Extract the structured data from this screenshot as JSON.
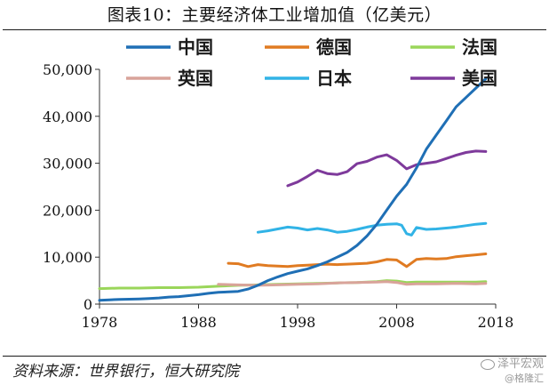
{
  "header": {
    "title": "图表10：主要经济体工业增加值（亿美元）"
  },
  "footer": {
    "source": "资料来源：世界银行，恒大研究院"
  },
  "watermark": {
    "line1": "泽平宏观",
    "line2": "@格隆汇",
    "icon": "wechat-icon"
  },
  "chart_data": {
    "type": "line",
    "title": "图表10：主要经济体工业增加值（亿美元）",
    "xlabel": "",
    "ylabel": "",
    "xlim": [
      1978,
      2018
    ],
    "ylim": [
      0,
      50000
    ],
    "x_ticks": [
      "1978",
      "1988",
      "1998",
      "2008",
      "2018"
    ],
    "y_ticks": [
      "0",
      "10,000",
      "20,000",
      "30,000",
      "40,000",
      "50,000"
    ],
    "grid": false,
    "legend_position": "top",
    "series": [
      {
        "name": "中国",
        "color": "#1f6fb5",
        "x": [
          1978,
          1979,
          1980,
          1981,
          1982,
          1983,
          1984,
          1985,
          1986,
          1987,
          1988,
          1989,
          1990,
          1991,
          1992,
          1993,
          1994,
          1995,
          1996,
          1997,
          1998,
          1999,
          2000,
          2001,
          2002,
          2003,
          2004,
          2005,
          2006,
          2007,
          2008,
          2009,
          2010,
          2011,
          2012,
          2013,
          2014,
          2015,
          2016,
          2017
        ],
        "y": [
          800,
          900,
          1000,
          1050,
          1100,
          1200,
          1300,
          1500,
          1600,
          1800,
          2000,
          2300,
          2500,
          2600,
          2700,
          3200,
          4000,
          5000,
          5800,
          6500,
          7000,
          7500,
          8200,
          9000,
          10000,
          11000,
          12500,
          14500,
          17000,
          20000,
          23000,
          25500,
          29000,
          33000,
          36000,
          39000,
          42000,
          44000,
          46000,
          48000
        ]
      },
      {
        "name": "德国",
        "color": "#e07b22",
        "x": [
          1991,
          1992,
          1993,
          1994,
          1995,
          1996,
          1997,
          1998,
          1999,
          2000,
          2001,
          2002,
          2003,
          2004,
          2005,
          2006,
          2007,
          2008,
          2009,
          2010,
          2011,
          2012,
          2013,
          2014,
          2015,
          2016,
          2017
        ],
        "y": [
          8700,
          8600,
          8000,
          8400,
          8200,
          8100,
          8000,
          8200,
          8300,
          8400,
          8500,
          8400,
          8500,
          8600,
          8700,
          9000,
          9500,
          9400,
          8000,
          9500,
          9700,
          9600,
          9700,
          10100,
          10300,
          10500,
          10700
        ]
      },
      {
        "name": "法国",
        "color": "#9ad65a",
        "x": [
          1978,
          1980,
          1982,
          1984,
          1986,
          1988,
          1990,
          1992,
          1994,
          1996,
          1998,
          2000,
          2002,
          2004,
          2006,
          2007,
          2008,
          2009,
          2010,
          2012,
          2014,
          2016,
          2017
        ],
        "y": [
          3300,
          3400,
          3400,
          3500,
          3500,
          3600,
          3800,
          4000,
          4100,
          4200,
          4300,
          4400,
          4500,
          4600,
          4800,
          5000,
          4900,
          4600,
          4700,
          4700,
          4700,
          4700,
          4800
        ]
      },
      {
        "name": "英国",
        "color": "#d9a39a",
        "x": [
          1990,
          1992,
          1994,
          1996,
          1998,
          2000,
          2002,
          2004,
          2006,
          2007,
          2008,
          2009,
          2010,
          2012,
          2014,
          2016,
          2017
        ],
        "y": [
          4200,
          4100,
          4000,
          4100,
          4200,
          4300,
          4500,
          4600,
          4700,
          4800,
          4600,
          4200,
          4300,
          4300,
          4400,
          4300,
          4400
        ]
      },
      {
        "name": "日本",
        "color": "#31b3e6",
        "x": [
          1994,
          1995,
          1996,
          1997,
          1998,
          1999,
          2000,
          2001,
          2002,
          2003,
          2004,
          2005,
          2006,
          2007,
          2008,
          2008.5,
          2009,
          2009.5,
          2010,
          2011,
          2012,
          2013,
          2014,
          2015,
          2016,
          2017
        ],
        "y": [
          15300,
          15600,
          16000,
          16400,
          16200,
          15800,
          16100,
          15800,
          15300,
          15500,
          15900,
          16400,
          16800,
          17000,
          17100,
          16800,
          15000,
          14700,
          16300,
          15900,
          16000,
          16200,
          16400,
          16700,
          17000,
          17200
        ]
      },
      {
        "name": "美国",
        "color": "#7e3a9b",
        "x": [
          1997,
          1998,
          1999,
          2000,
          2001,
          2002,
          2003,
          2004,
          2005,
          2006,
          2007,
          2008,
          2009,
          2010,
          2011,
          2012,
          2013,
          2014,
          2015,
          2016,
          2017
        ],
        "y": [
          25200,
          26000,
          27200,
          28500,
          27800,
          27600,
          28200,
          29900,
          30400,
          31300,
          31800,
          30600,
          28800,
          29700,
          30000,
          30300,
          31000,
          31700,
          32300,
          32600,
          32500
        ]
      }
    ]
  }
}
